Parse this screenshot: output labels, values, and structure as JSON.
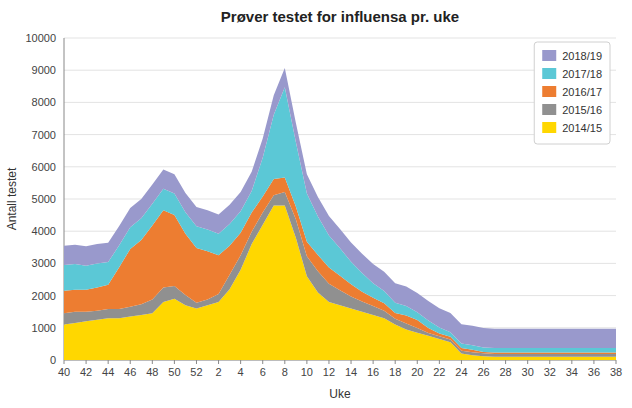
{
  "chart_data": {
    "type": "area",
    "stacked": true,
    "title": "Prøver testet for influensa pr. uke",
    "xlabel": "Uke",
    "ylabel": "Antall testet",
    "categories": [
      "40",
      null,
      "42",
      null,
      "44",
      null,
      "46",
      null,
      "48",
      null,
      "50",
      null,
      "52",
      null,
      "2",
      null,
      "4",
      null,
      "6",
      null,
      "8",
      null,
      "10",
      null,
      "12",
      null,
      "14",
      null,
      "16",
      null,
      "18",
      null,
      "20",
      null,
      "22",
      null,
      "24",
      null,
      "26",
      null,
      "28",
      null,
      "30",
      null,
      "32",
      null,
      "34",
      null,
      "36",
      null,
      "38"
    ],
    "ylim": [
      0,
      10000
    ],
    "yticks": [
      0,
      1000,
      2000,
      3000,
      4000,
      5000,
      6000,
      7000,
      8000,
      9000,
      10000
    ],
    "grid": true,
    "legend": "upper-right",
    "series": [
      {
        "name": "2014/15",
        "color": "#FFD700",
        "values": [
          1100,
          1150,
          1200,
          1250,
          1300,
          1300,
          1350,
          1400,
          1450,
          1800,
          1900,
          1700,
          1600,
          1700,
          1800,
          2200,
          2800,
          3600,
          4200,
          4800,
          4800,
          3800,
          2600,
          2100,
          1800,
          1700,
          1600,
          1500,
          1400,
          1300,
          1100,
          950,
          850,
          750,
          650,
          550,
          200,
          150,
          120,
          100,
          100,
          100,
          100,
          100,
          100,
          100,
          100,
          100,
          100,
          100,
          100
        ]
      },
      {
        "name": "2015/16",
        "color": "#909090",
        "values": [
          350,
          350,
          300,
          280,
          280,
          280,
          300,
          330,
          430,
          450,
          400,
          320,
          180,
          180,
          250,
          450,
          450,
          380,
          380,
          320,
          420,
          570,
          620,
          660,
          570,
          470,
          370,
          320,
          280,
          230,
          180,
          180,
          140,
          90,
          90,
          90,
          90,
          90,
          90,
          90,
          90,
          90,
          90,
          90,
          90,
          90,
          90,
          90,
          90,
          90,
          90
        ]
      },
      {
        "name": "2016/17",
        "color": "#ED7D31",
        "values": [
          700,
          680,
          680,
          720,
          760,
          1300,
          1800,
          2000,
          2300,
          2400,
          2200,
          1900,
          1700,
          1500,
          1200,
          900,
          700,
          600,
          500,
          500,
          450,
          400,
          450,
          500,
          500,
          450,
          380,
          300,
          250,
          230,
          180,
          250,
          250,
          150,
          80,
          80,
          80,
          80,
          40,
          40,
          40,
          40,
          40,
          40,
          40,
          40,
          40,
          40,
          40,
          40,
          40
        ]
      },
      {
        "name": "2017/18",
        "color": "#5BC8D6",
        "values": [
          800,
          800,
          750,
          750,
          700,
          680,
          670,
          670,
          670,
          670,
          670,
          670,
          670,
          670,
          670,
          670,
          670,
          670,
          1200,
          2000,
          2800,
          2000,
          1500,
          1200,
          1000,
          850,
          700,
          580,
          450,
          380,
          320,
          300,
          240,
          240,
          190,
          140,
          140,
          140,
          140,
          140,
          140,
          140,
          140,
          140,
          140,
          140,
          140,
          140,
          140,
          140,
          140
        ]
      },
      {
        "name": "2018/19",
        "color": "#9999CC",
        "values": [
          600,
          600,
          600,
          600,
          600,
          600,
          600,
          600,
          600,
          600,
          600,
          600,
          600,
          600,
          600,
          600,
          600,
          600,
          600,
          600,
          600,
          600,
          600,
          600,
          600,
          600,
          600,
          600,
          600,
          600,
          600,
          600,
          600,
          600,
          600,
          600,
          600,
          600,
          600,
          600,
          600,
          600,
          600,
          600,
          600,
          600,
          600,
          600,
          600,
          600,
          600
        ]
      }
    ]
  }
}
